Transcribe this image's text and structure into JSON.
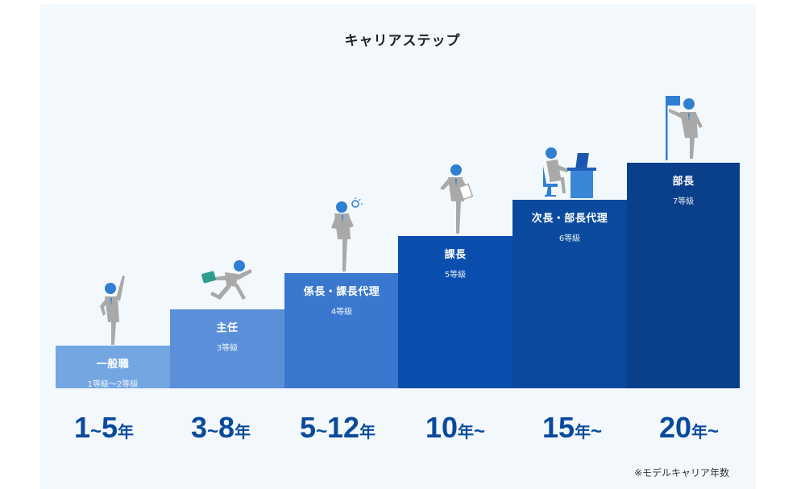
{
  "title": "キャリアステップ",
  "steps": [
    {
      "name": "一般職",
      "grade": "1等級〜2等級",
      "years": {
        "num1": "1",
        "sep": "~",
        "num2": "5",
        "unit": "年",
        "tail": ""
      },
      "color": "#74a6e2",
      "figure": "person-cheering-icon"
    },
    {
      "name": "主任",
      "grade": "3等級",
      "years": {
        "num1": "3",
        "sep": "~",
        "num2": "8",
        "unit": "年",
        "tail": ""
      },
      "color": "#5b8fd9",
      "figure": "person-running-briefcase-icon"
    },
    {
      "name": "係長・課長代理",
      "grade": "4等級",
      "years": {
        "num1": "5",
        "sep": "~",
        "num2": "12",
        "unit": "年",
        "tail": ""
      },
      "color": "#3a78cf",
      "figure": "person-thinking-idea-icon"
    },
    {
      "name": "課長",
      "grade": "5等級",
      "years": {
        "num1": "10",
        "sep": "",
        "num2": "",
        "unit": "年",
        "tail": "~"
      },
      "color": "#0a4fae",
      "figure": "person-with-document-icon"
    },
    {
      "name": "次長・部長代理",
      "grade": "6等級",
      "years": {
        "num1": "15",
        "sep": "",
        "num2": "",
        "unit": "年",
        "tail": "~"
      },
      "color": "#0a4a9e",
      "figure": "person-at-desk-icon"
    },
    {
      "name": "部長",
      "grade": "7等級",
      "years": {
        "num1": "20",
        "sep": "",
        "num2": "",
        "unit": "年",
        "tail": "~"
      },
      "color": "#0a3f8a",
      "figure": "person-with-flag-icon"
    }
  ],
  "note": "※モデルキャリア年数",
  "colors": {
    "figure_body": "#a9a9a9",
    "figure_head": "#2f7fd2",
    "year_text": "#0a4a9c"
  }
}
